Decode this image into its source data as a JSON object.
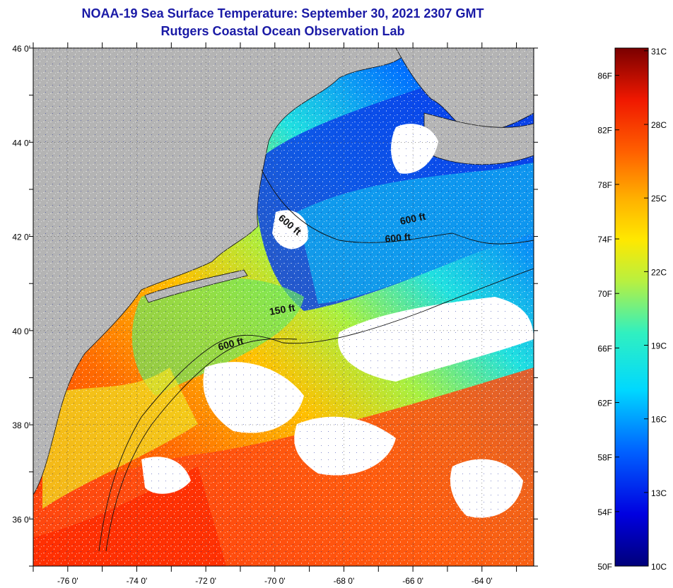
{
  "header": {
    "title": "NOAA-19 Sea Surface Temperature:  September 30, 2021 2307 GMT",
    "subtitle": "Rutgers Coastal Ocean Observation Lab"
  },
  "map": {
    "lat_labels": [
      "46 0'",
      "44 0'",
      "42 0'",
      "40 0'",
      "38 0'",
      "36 0'"
    ],
    "lon_labels": [
      "-76 0'",
      "-74 0'",
      "-72 0'",
      "-70 0'",
      "-68 0'",
      "-66 0'",
      "-64 0'"
    ],
    "lat_range": [
      35,
      46
    ],
    "lon_range": [
      -77,
      -62.5
    ],
    "contour_labels": [
      "600 ft",
      "600 ft",
      "600 ft",
      "150 ft",
      "600 ft"
    ],
    "colors": {
      "land": "#b4b4b4",
      "cloud": "#ffffff",
      "coast": "#111111"
    }
  },
  "colorbar": {
    "fahrenheit": [
      "86F",
      "82F",
      "78F",
      "74F",
      "70F",
      "66F",
      "62F",
      "58F",
      "54F",
      "50F"
    ],
    "celsius": [
      "31C",
      "28C",
      "25C",
      "22C",
      "19C",
      "16C",
      "13C",
      "10C"
    ],
    "range_f": [
      50,
      88
    ]
  }
}
